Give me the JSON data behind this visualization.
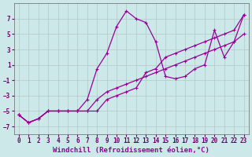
{
  "xlabel": "Windchill (Refroidissement éolien,°C)",
  "background_color": "#cce8e8",
  "grid_color": "#b0c8c8",
  "line_color": "#990099",
  "xlim": [
    -0.5,
    23.5
  ],
  "ylim": [
    -8,
    9
  ],
  "xticks": [
    0,
    1,
    2,
    3,
    4,
    5,
    6,
    7,
    8,
    9,
    10,
    11,
    12,
    13,
    14,
    15,
    16,
    17,
    18,
    19,
    20,
    21,
    22,
    23
  ],
  "yticks": [
    -7,
    -5,
    -3,
    -1,
    1,
    3,
    5,
    7
  ],
  "line1_x": [
    0,
    1,
    2,
    3,
    4,
    5,
    6,
    7,
    8,
    9,
    10,
    11,
    12,
    13,
    14,
    15,
    16,
    17,
    18,
    19,
    20,
    21,
    22,
    23
  ],
  "line1_y": [
    -5.5,
    -6.5,
    -6,
    -5,
    -5,
    -5,
    -5,
    -5,
    -5,
    -3.5,
    -3,
    -2.5,
    -2,
    0,
    0.5,
    2,
    2.5,
    3,
    3.5,
    4,
    4.5,
    5,
    5.5,
    7.5
  ],
  "line2_x": [
    0,
    1,
    2,
    3,
    4,
    5,
    6,
    7,
    8,
    9,
    10,
    11,
    12,
    13,
    14,
    15,
    16,
    17,
    18,
    19,
    20,
    21,
    22,
    23
  ],
  "line2_y": [
    -5.5,
    -6.5,
    -6,
    -5,
    -5,
    -5,
    -5,
    -3.5,
    0.5,
    2.5,
    6,
    8,
    7,
    6.5,
    4,
    -0.5,
    -0.8,
    -0.5,
    0.5,
    1,
    5.5,
    2,
    4,
    7.5
  ],
  "line3_x": [
    0,
    1,
    2,
    3,
    4,
    5,
    6,
    7,
    8,
    9,
    10,
    11,
    12,
    13,
    14,
    15,
    16,
    17,
    18,
    19,
    20,
    21,
    22,
    23
  ],
  "line3_y": [
    -5.5,
    -6.5,
    -6,
    -5,
    -5,
    -5,
    -5,
    -5,
    -3.5,
    -2.5,
    -2,
    -1.5,
    -1,
    -0.5,
    0,
    0.5,
    1,
    1.5,
    2,
    2.5,
    3,
    3.5,
    4,
    5
  ],
  "xlabel_fontsize": 6.5,
  "tick_fontsize": 5.5
}
